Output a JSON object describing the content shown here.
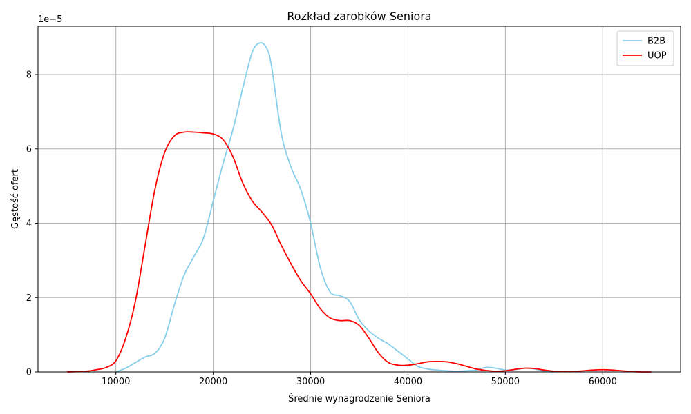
{
  "chart_data": {
    "type": "line",
    "title": "Rozkład zarobków Seniora",
    "xlabel": "Średnie wynagrodzenie Seniora",
    "ylabel": "Gęstość ofert",
    "y_offset_label": "1e−5",
    "xlim": [
      2000,
      68000
    ],
    "ylim": [
      0,
      9.3
    ],
    "xticks": [
      10000,
      20000,
      30000,
      40000,
      50000,
      60000
    ],
    "xtick_labels": [
      "10000",
      "20000",
      "30000",
      "40000",
      "50000",
      "60000"
    ],
    "yticks": [
      0,
      2,
      4,
      6,
      8
    ],
    "ytick_labels": [
      "0",
      "2",
      "4",
      "6",
      "8"
    ],
    "grid": true,
    "legend_position": "top-right",
    "series": [
      {
        "name": "B2B",
        "color": "#87CEEB",
        "x": [
          10000,
          11000,
          12000,
          13000,
          14000,
          15000,
          16000,
          17000,
          18000,
          19000,
          20000,
          21000,
          22000,
          23000,
          24000,
          24800,
          25500,
          26000,
          27000,
          28000,
          29000,
          30000,
          31000,
          32000,
          33000,
          34000,
          35000,
          36000,
          37000,
          38000,
          39000,
          40000,
          41000,
          42000,
          43000,
          44000,
          45000,
          46000,
          47000,
          48000,
          49000,
          50000,
          51000,
          52000,
          53000,
          54000,
          55000
        ],
        "values": [
          0.0,
          0.1,
          0.25,
          0.4,
          0.5,
          0.9,
          1.8,
          2.6,
          3.1,
          3.6,
          4.6,
          5.6,
          6.5,
          7.6,
          8.6,
          8.85,
          8.7,
          8.2,
          6.4,
          5.5,
          4.9,
          4.0,
          2.8,
          2.15,
          2.05,
          1.9,
          1.4,
          1.1,
          0.9,
          0.75,
          0.55,
          0.35,
          0.15,
          0.08,
          0.05,
          0.03,
          0.02,
          0.03,
          0.05,
          0.12,
          0.1,
          0.05,
          0.06,
          0.1,
          0.08,
          0.02,
          0.0
        ]
      },
      {
        "name": "UOP",
        "color": "#FF0000",
        "x": [
          5000,
          7000,
          8000,
          9000,
          10000,
          11000,
          12000,
          13000,
          14000,
          15000,
          16000,
          17000,
          18000,
          19000,
          20000,
          21000,
          22000,
          23000,
          24000,
          25000,
          26000,
          27000,
          28000,
          29000,
          30000,
          31000,
          32000,
          33000,
          34000,
          35000,
          36000,
          37000,
          38000,
          39000,
          40000,
          41000,
          42000,
          43000,
          44000,
          45000,
          46000,
          47000,
          48000,
          49000,
          50000,
          51000,
          52000,
          53000,
          54000,
          55000,
          56000,
          57000,
          58000,
          59000,
          60000,
          61000,
          62000,
          63000,
          64000,
          65000
        ],
        "values": [
          0.0,
          0.02,
          0.06,
          0.12,
          0.3,
          0.9,
          1.9,
          3.4,
          4.9,
          5.9,
          6.35,
          6.45,
          6.45,
          6.43,
          6.4,
          6.25,
          5.8,
          5.1,
          4.6,
          4.3,
          3.95,
          3.4,
          2.9,
          2.45,
          2.1,
          1.7,
          1.45,
          1.38,
          1.38,
          1.25,
          0.9,
          0.5,
          0.25,
          0.18,
          0.18,
          0.22,
          0.27,
          0.28,
          0.27,
          0.22,
          0.15,
          0.08,
          0.04,
          0.02,
          0.03,
          0.07,
          0.1,
          0.09,
          0.05,
          0.02,
          0.01,
          0.01,
          0.03,
          0.05,
          0.06,
          0.05,
          0.03,
          0.01,
          0.0,
          0.0
        ]
      }
    ]
  }
}
